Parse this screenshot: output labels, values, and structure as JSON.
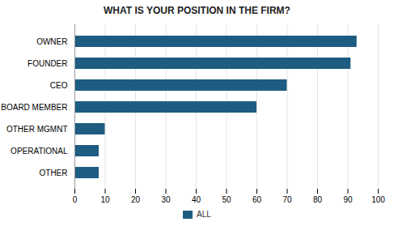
{
  "chart_data": {
    "type": "bar",
    "orientation": "horizontal",
    "title": "WHAT IS YOUR POSITION IN THE FIRM?",
    "categories": [
      "OWNER",
      "FOUNDER",
      "CEO",
      "BOARD MEMBER",
      "OTHER MGMNT",
      "OPERATIONAL",
      "OTHER"
    ],
    "series": [
      {
        "name": "ALL",
        "color": "#1F5C82",
        "values": [
          93,
          91,
          70,
          60,
          10,
          8,
          8
        ]
      }
    ],
    "xlim": [
      0,
      100
    ],
    "xticks": [
      0,
      10,
      20,
      30,
      40,
      50,
      60,
      70,
      80,
      90,
      100
    ],
    "grid": true,
    "legend": "bottom"
  }
}
